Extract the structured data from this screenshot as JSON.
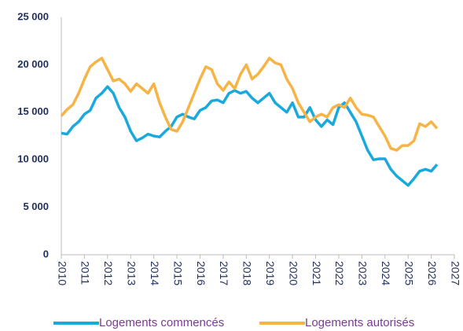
{
  "chart_data": {
    "type": "line",
    "x": [
      2010,
      2010.25,
      2010.5,
      2010.75,
      2011,
      2011.25,
      2011.5,
      2011.75,
      2012,
      2012.25,
      2012.5,
      2012.75,
      2013,
      2013.25,
      2013.5,
      2013.75,
      2014,
      2014.25,
      2014.5,
      2014.75,
      2015,
      2015.25,
      2015.5,
      2015.75,
      2016,
      2016.25,
      2016.5,
      2016.75,
      2017,
      2017.25,
      2017.5,
      2017.75,
      2018,
      2018.25,
      2018.5,
      2018.75,
      2019,
      2019.25,
      2019.5,
      2019.75,
      2020,
      2020.25,
      2020.5,
      2020.75,
      2021,
      2021.25,
      2021.5,
      2021.75,
      2022,
      2022.25,
      2022.5,
      2022.75,
      2023,
      2023.25,
      2023.5,
      2023.75,
      2024,
      2024.25,
      2024.5,
      2024.75,
      2025,
      2025.25,
      2025.5,
      2025.75,
      2026,
      2026.25
    ],
    "series": [
      {
        "name": "Logements commencés",
        "color": "#1aa9dc",
        "values": [
          12800,
          12700,
          13500,
          14000,
          14800,
          15200,
          16500,
          17000,
          17700,
          17000,
          15500,
          14500,
          13000,
          12000,
          12300,
          12700,
          12500,
          12400,
          13000,
          13500,
          14500,
          14800,
          14500,
          14300,
          15200,
          15500,
          16200,
          16300,
          16000,
          17000,
          17300,
          17000,
          17200,
          16500,
          16000,
          16500,
          17000,
          16000,
          15500,
          15000,
          16000,
          14500,
          14500,
          15500,
          14200,
          13500,
          14200,
          13700,
          15500,
          16000,
          15000,
          14000,
          12500,
          11000,
          10000,
          10100,
          10100,
          9000,
          8300,
          7800,
          7300,
          8000,
          8800,
          9000,
          8800,
          9500
        ]
      },
      {
        "name": "Logements autorisés",
        "color": "#f6b446",
        "values": [
          14600,
          15300,
          15800,
          17000,
          18500,
          19800,
          20300,
          20700,
          19500,
          18300,
          18500,
          18000,
          17200,
          18000,
          17500,
          17000,
          18000,
          16000,
          14500,
          13200,
          13000,
          14000,
          15500,
          17000,
          18500,
          19800,
          19500,
          18000,
          17300,
          18200,
          17500,
          19000,
          20000,
          18500,
          19000,
          19800,
          20700,
          20200,
          20000,
          18500,
          17500,
          16000,
          15000,
          14000,
          14500,
          14800,
          14500,
          15500,
          15800,
          15500,
          16500,
          15500,
          14800,
          14700,
          14500,
          13500,
          12500,
          11200,
          11000,
          11500,
          11500,
          12000,
          13800,
          13500,
          14000,
          13300
        ]
      }
    ],
    "xlim": [
      2010,
      2027
    ],
    "xticks": [
      2010,
      2011,
      2012,
      2013,
      2014,
      2015,
      2016,
      2017,
      2018,
      2019,
      2020,
      2021,
      2022,
      2023,
      2024,
      2025,
      2026,
      2027
    ],
    "ylim": [
      0,
      25000
    ],
    "yticks": [
      0,
      {
        "value": 5000,
        "label": "5 000"
      },
      {
        "value": 10000,
        "label": "10 000"
      },
      {
        "value": 15000,
        "label": "15 000"
      },
      {
        "value": 20000,
        "label": "20 000"
      },
      {
        "value": 25000,
        "label": "25 000"
      }
    ],
    "grid": false,
    "legend": "bottom"
  }
}
